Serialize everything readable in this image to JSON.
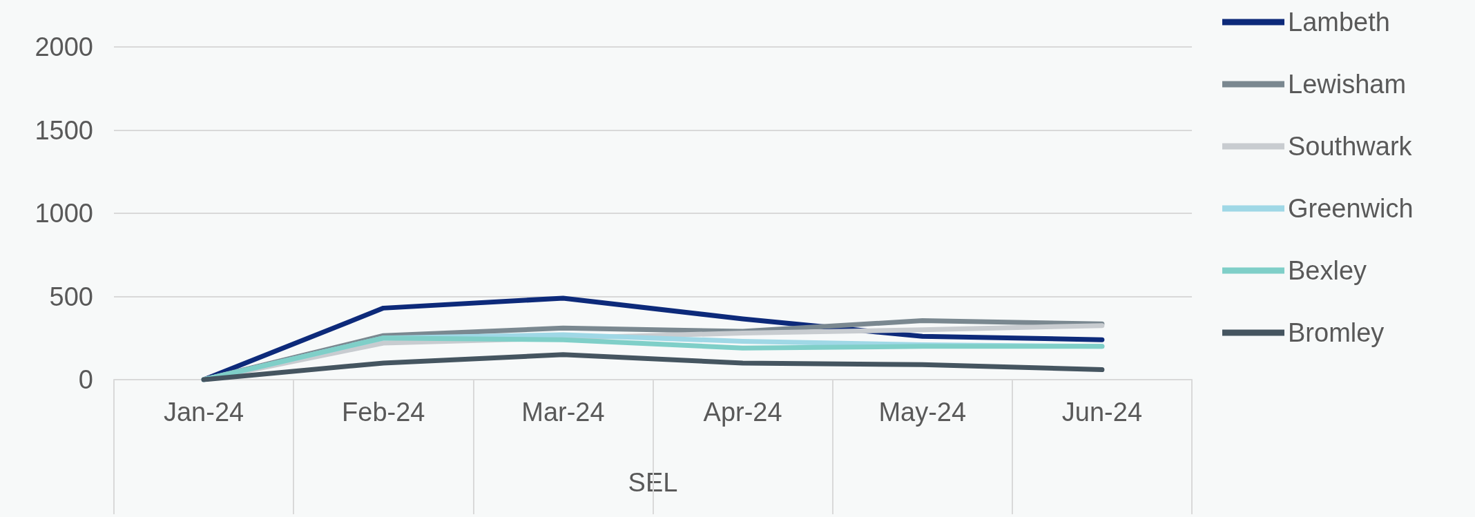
{
  "chart_data": {
    "type": "line",
    "xlabel": "SEL",
    "categories": [
      "Jan-24",
      "Feb-24",
      "Mar-24",
      "Apr-24",
      "May-24",
      "Jun-24"
    ],
    "series": [
      {
        "name": "Lambeth",
        "color": "#0d2a7a",
        "values": [
          0,
          430,
          490,
          365,
          260,
          240
        ]
      },
      {
        "name": "Lewisham",
        "color": "#7a8890",
        "values": [
          0,
          265,
          310,
          290,
          355,
          335
        ]
      },
      {
        "name": "Southwark",
        "color": "#c8ccd0",
        "values": [
          0,
          220,
          250,
          280,
          300,
          325
        ]
      },
      {
        "name": "Greenwich",
        "color": "#9fd8e6",
        "values": [
          0,
          250,
          270,
          230,
          210,
          200
        ]
      },
      {
        "name": "Bexley",
        "color": "#7fcfc8",
        "values": [
          0,
          250,
          240,
          190,
          200,
          200
        ]
      },
      {
        "name": "Bromley",
        "color": "#455560",
        "values": [
          0,
          100,
          150,
          100,
          90,
          60
        ]
      }
    ],
    "ylim": [
      0,
      2000
    ],
    "yticks": [
      0,
      500,
      1000,
      1500,
      2000
    ],
    "grid": "y",
    "legend": "right",
    "marker": "none",
    "line_style": "solid"
  }
}
